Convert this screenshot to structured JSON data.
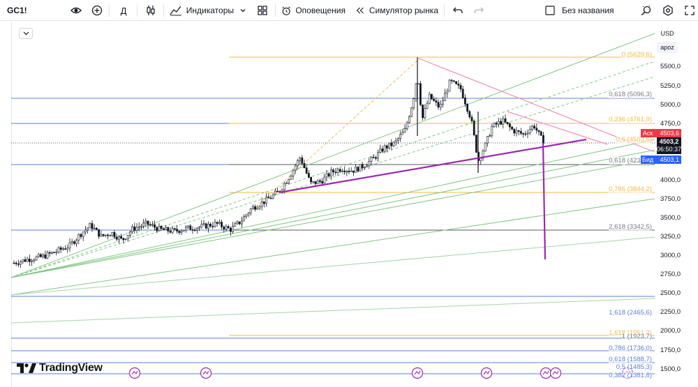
{
  "toolbar": {
    "symbol": "GC1!",
    "interval": "Д",
    "indicators_label": "Индикаторы",
    "alerts_label": "Оповещения",
    "replay_label": "Симулятор рынка",
    "layout_name": "Без названия"
  },
  "price_scale": {
    "currency": "USD",
    "scale_mode": "apoz",
    "ticks": [
      "5500,0",
      "5250,0",
      "5000,0",
      "4750,0",
      "4000,0",
      "3750,0",
      "3500,0",
      "3250,0",
      "3000,0",
      "2750,0",
      "2500,0",
      "2250,0",
      "2000,0",
      "1750,0",
      "1500,0"
    ],
    "ask_label": "Аск",
    "ask_value": "4503,6",
    "bid_label": "Бид",
    "bid_value": "4503,1",
    "last_price": "4503,2",
    "countdown": "06:50:37"
  },
  "fib_upper": [
    {
      "text": "0 (5629,6)",
      "color": "#f5b942"
    },
    {
      "text": "0,618 (5096,3)",
      "color": "#787b86"
    },
    {
      "text": "0,236 (4761,9)",
      "color": "#f5b942"
    },
    {
      "text": "0,5 (4503,6)",
      "color": "#f5b942"
    },
    {
      "text": "0,618 (4230,7)",
      "color": "#787b86"
    },
    {
      "text": "0,786 (3844,2)",
      "color": "#f5b942"
    },
    {
      "text": "2,618 (3342,5)",
      "color": "#787b86"
    }
  ],
  "fib_lower": [
    {
      "text": "1,618 (2465,6)",
      "color": "#5b7fd6"
    },
    {
      "text": "1,618 (1951,2)",
      "color": "#f5b942"
    },
    {
      "text": "1 (1923,7)",
      "color": "#787b86"
    },
    {
      "text": "0,786 (1736,0)",
      "color": "#5b7fd6"
    },
    {
      "text": "0,618 (1588,7)",
      "color": "#5b7fd6"
    },
    {
      "text": "0,5 (1485,3)",
      "color": "#5b7fd6"
    },
    {
      "text": "0,382 (1381,8)",
      "color": "#5b7fd6"
    }
  ],
  "branding": {
    "logo_text": "TradingView"
  },
  "colors": {
    "accent": "#2962ff",
    "ask": "#f23645",
    "bid": "#2962ff",
    "trend": "#9c27b0",
    "wedge": "#f48fb1"
  }
}
